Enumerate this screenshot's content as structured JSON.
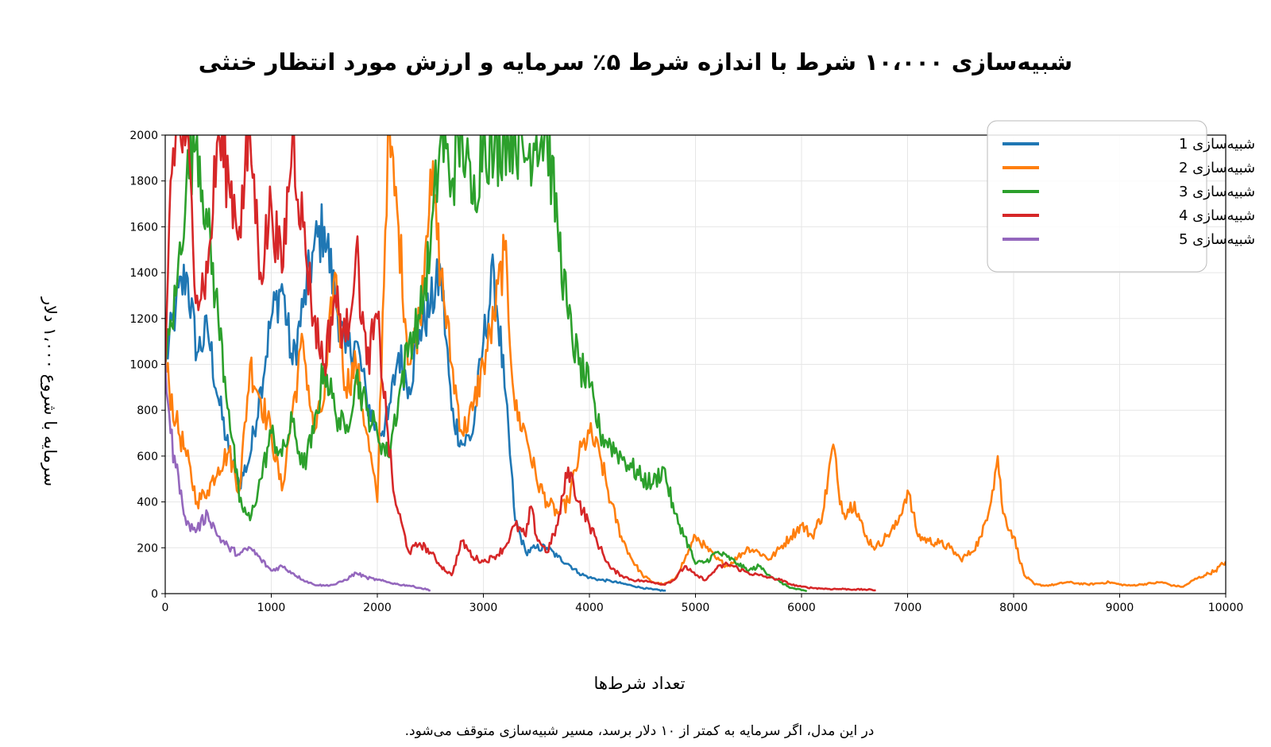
{
  "chart_data": {
    "type": "line",
    "title": "شبیه‌سازی ۱۰،۰۰۰ شرط با اندازه شرط ۵٪ سرمایه و ارزش مورد انتظار خنثی",
    "xlabel": "تعداد شرط‌ها",
    "ylabel": "سرمایه با شروع ۱،۰۰۰ دلار",
    "footnote": "در این مدل، اگر سرمایه به کمتر از ۱۰ دلار برسد، مسیر شبیه‌سازی متوقف می‌شود.",
    "xlim": [
      0,
      10000
    ],
    "ylim": [
      0,
      2000
    ],
    "x_ticks": [
      "0",
      "1000",
      "2000",
      "3000",
      "4000",
      "5000",
      "6000",
      "7000",
      "8000",
      "9000",
      "10000"
    ],
    "y_ticks": [
      "0",
      "200",
      "400",
      "600",
      "800",
      "1000",
      "1200",
      "1400",
      "1600",
      "1800",
      "2000"
    ],
    "grid": true,
    "legend_position": "top-right",
    "series": [
      {
        "name": "شبیه‌سازی 1",
        "color": "#1f77b4",
        "x": [
          0,
          100,
          200,
          300,
          400,
          500,
          600,
          700,
          800,
          900,
          1000,
          1100,
          1200,
          1300,
          1400,
          1500,
          1600,
          1700,
          1800,
          1900,
          2000,
          2100,
          2200,
          2300,
          2400,
          2500,
          2600,
          2700,
          2800,
          2900,
          3000,
          3100,
          3200,
          3300,
          3400,
          3500,
          3600,
          3700,
          3800,
          3900,
          4000,
          4100,
          4200,
          4300,
          4400,
          4500,
          4600,
          4720
        ],
        "y": [
          1000,
          1250,
          1400,
          1050,
          1150,
          850,
          620,
          480,
          600,
          900,
          1200,
          1350,
          1000,
          1250,
          1500,
          1600,
          1300,
          1050,
          1100,
          850,
          700,
          760,
          1050,
          900,
          1150,
          1250,
          1400,
          800,
          650,
          700,
          1100,
          1400,
          900,
          320,
          180,
          200,
          200,
          160,
          130,
          90,
          70,
          60,
          55,
          45,
          35,
          25,
          18,
          12
        ]
      },
      {
        "name": "شبیه‌سازی 2",
        "color": "#ff7f0e",
        "x": [
          0,
          100,
          200,
          300,
          400,
          500,
          600,
          700,
          800,
          900,
          1000,
          1100,
          1200,
          1300,
          1400,
          1500,
          1600,
          1700,
          1800,
          1900,
          2000,
          2100,
          2200,
          2300,
          2400,
          2500,
          2600,
          2700,
          2800,
          2900,
          3000,
          3100,
          3200,
          3300,
          3400,
          3500,
          3600,
          3700,
          3800,
          3900,
          4000,
          4100,
          4200,
          4300,
          4400,
          4500,
          4600,
          4700,
          4800,
          4900,
          5000,
          5100,
          5200,
          5300,
          5400,
          5500,
          5600,
          5700,
          5800,
          5900,
          6000,
          6100,
          6200,
          6300,
          6350,
          6400,
          6500,
          6600,
          6700,
          6800,
          6900,
          7000,
          7100,
          7200,
          7300,
          7400,
          7500,
          7600,
          7700,
          7800,
          7850,
          7900,
          8000,
          8100,
          8200,
          8300,
          8400,
          8500,
          8600,
          8700,
          8800,
          8900,
          9000,
          9100,
          9200,
          9300,
          9400,
          9500,
          9600,
          9700,
          9800,
          9900,
          10000
        ],
        "y": [
          1000,
          750,
          600,
          400,
          450,
          550,
          620,
          450,
          1000,
          850,
          700,
          450,
          800,
          1100,
          700,
          850,
          1400,
          900,
          1000,
          700,
          400,
          2000,
          1600,
          1000,
          1200,
          1850,
          1400,
          1000,
          700,
          800,
          1000,
          1200,
          1500,
          800,
          700,
          500,
          400,
          350,
          400,
          600,
          700,
          600,
          400,
          250,
          150,
          80,
          50,
          40,
          60,
          150,
          250,
          200,
          150,
          120,
          160,
          200,
          180,
          150,
          200,
          250,
          300,
          250,
          350,
          650,
          450,
          350,
          400,
          250,
          200,
          250,
          300,
          450,
          250,
          230,
          220,
          200,
          150,
          180,
          250,
          450,
          600,
          350,
          250,
          80,
          40,
          35,
          40,
          50,
          45,
          40,
          45,
          50,
          40,
          35,
          40,
          45,
          50,
          35,
          30,
          60,
          80,
          100,
          140
        ]
      },
      {
        "name": "شبیه‌سازی 3",
        "color": "#2ca02c",
        "x": [
          0,
          100,
          200,
          300,
          400,
          500,
          600,
          700,
          800,
          900,
          1000,
          1100,
          1200,
          1300,
          1400,
          1500,
          1600,
          1700,
          1800,
          1900,
          2000,
          2100,
          2200,
          2300,
          2400,
          2500,
          2600,
          2700,
          2800,
          2900,
          3000,
          3100,
          3200,
          3300,
          3400,
          3500,
          3600,
          3700,
          3800,
          3900,
          4000,
          4100,
          4200,
          4300,
          4400,
          4500,
          4600,
          4700,
          4800,
          4900,
          5000,
          5100,
          5200,
          5300,
          5400,
          5500,
          5600,
          5700,
          5800,
          5900,
          6000,
          6050
        ],
        "y": [
          1000,
          1300,
          1800,
          2000,
          1600,
          1200,
          800,
          400,
          320,
          500,
          700,
          600,
          750,
          550,
          700,
          1000,
          800,
          700,
          950,
          800,
          700,
          600,
          850,
          1100,
          1200,
          1500,
          2000,
          1800,
          2000,
          1700,
          2000,
          1900,
          2000,
          2000,
          1900,
          2000,
          2000,
          1600,
          1200,
          1000,
          900,
          700,
          650,
          600,
          550,
          500,
          480,
          550,
          350,
          250,
          130,
          140,
          180,
          160,
          130,
          100,
          120,
          80,
          50,
          25,
          15,
          10
        ]
      },
      {
        "name": "شبیه‌سازی 4",
        "color": "#d62728",
        "x": [
          0,
          50,
          100,
          200,
          300,
          400,
          500,
          600,
          700,
          800,
          900,
          1000,
          1100,
          1200,
          1300,
          1400,
          1500,
          1600,
          1700,
          1800,
          1900,
          2000,
          2100,
          2150,
          2200,
          2300,
          2400,
          2500,
          2600,
          2700,
          2800,
          2900,
          3000,
          3100,
          3200,
          3300,
          3400,
          3450,
          3500,
          3600,
          3700,
          3800,
          3900,
          4000,
          4100,
          4200,
          4300,
          4400,
          4500,
          4600,
          4700,
          4800,
          4900,
          5000,
          5100,
          5200,
          5300,
          5400,
          5500,
          5600,
          5700,
          5800,
          5900,
          6000,
          6100,
          6200,
          6300,
          6400,
          6500,
          6600,
          6700
        ],
        "y": [
          1000,
          1800,
          2000,
          2000,
          1300,
          1400,
          2000,
          1800,
          1600,
          2000,
          1400,
          1700,
          1400,
          2000,
          1600,
          1200,
          1000,
          1300,
          1100,
          1500,
          1000,
          1200,
          700,
          450,
          350,
          180,
          220,
          180,
          120,
          80,
          230,
          160,
          140,
          160,
          200,
          300,
          250,
          380,
          250,
          180,
          300,
          550,
          400,
          300,
          200,
          110,
          80,
          60,
          55,
          50,
          40,
          60,
          120,
          80,
          60,
          110,
          130,
          110,
          90,
          80,
          70,
          60,
          40,
          30,
          25,
          22,
          20,
          20,
          18,
          18,
          15
        ]
      },
      {
        "name": "شبیه‌سازی 5",
        "color": "#9467bd",
        "x": [
          0,
          50,
          100,
          150,
          200,
          300,
          400,
          500,
          600,
          700,
          800,
          900,
          1000,
          1100,
          1200,
          1300,
          1400,
          1500,
          1600,
          1700,
          1800,
          1900,
          2000,
          2100,
          2200,
          2300,
          2400,
          2500
        ],
        "y": [
          1000,
          700,
          550,
          450,
          300,
          280,
          350,
          250,
          200,
          170,
          200,
          150,
          100,
          120,
          90,
          60,
          40,
          35,
          40,
          60,
          90,
          70,
          60,
          50,
          40,
          35,
          25,
          15
        ]
      }
    ]
  }
}
